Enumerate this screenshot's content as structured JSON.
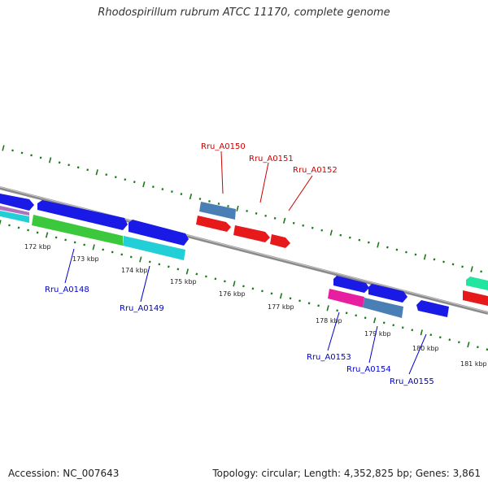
{
  "title": "Rhodospirillum rubrum ATCC 11170, complete genome",
  "footer": {
    "accession": "Accession: NC_007643",
    "stats": "Topology: circular; Length: 4,352,825 bp; Genes: 3,861"
  },
  "colors": {
    "backbone": "#8a8a8a",
    "tick": "#1a7a1a",
    "gene_blue": "#1a1ae6",
    "gene_green": "#3cc83c",
    "gene_cyan": "#22cfd6",
    "gene_steel": "#4a7fb5",
    "gene_red": "#e61a1a",
    "gene_magenta": "#e81ea0",
    "gene_spring": "#22e6a0",
    "label_red": "#cc0000",
    "label_blue": "#0000cc"
  },
  "kbp_labels": [
    "172 kbp",
    "173 kbp",
    "174 kbp",
    "175 kbp",
    "176 kbp",
    "177 kbp",
    "178 kbp",
    "179 kbp",
    "180 kbp",
    "181 kbp"
  ],
  "gene_labels_top": [
    "Rru_A0150",
    "Rru_A0151",
    "Rru_A0152"
  ],
  "gene_labels_bottom": [
    "Rru_A0148",
    "Rru_A0149",
    "Rru_A0153",
    "Rru_A0154",
    "Rru_A0155"
  ]
}
